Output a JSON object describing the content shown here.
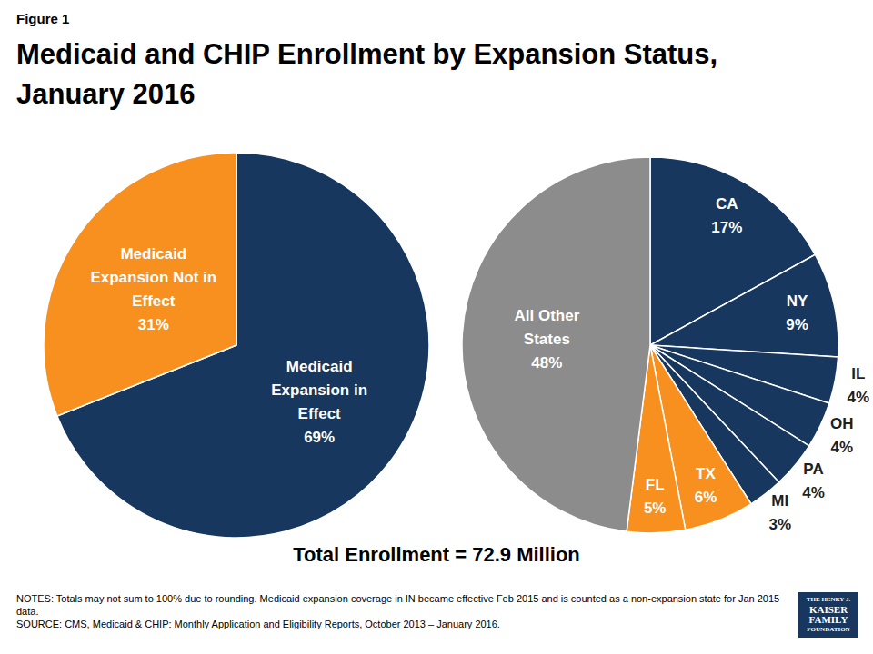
{
  "figure_label": "Figure 1",
  "title": "Medicaid and CHIP Enrollment by Expansion Status, January 2016",
  "chart_data": [
    {
      "type": "pie",
      "categories": [
        "Medicaid Expansion in Effect",
        "Medicaid Expansion Not in Effect"
      ],
      "values": [
        69,
        31
      ],
      "value_labels": [
        "69%",
        "31%"
      ],
      "colors": [
        "#17375e",
        "#f7901e"
      ],
      "data_labels": true
    },
    {
      "type": "pie",
      "categories": [
        "CA",
        "NY",
        "IL",
        "OH",
        "PA",
        "MI",
        "TX",
        "FL",
        "All Other States"
      ],
      "values": [
        17,
        9,
        4,
        4,
        4,
        3,
        6,
        5,
        48
      ],
      "value_labels": [
        "17%",
        "9%",
        "4%",
        "4%",
        "4%",
        "3%",
        "6%",
        "5%",
        "48%"
      ],
      "colors": [
        "#17375e",
        "#17375e",
        "#17375e",
        "#17375e",
        "#17375e",
        "#17375e",
        "#f7901e",
        "#f7901e",
        "#8c8c8c"
      ],
      "data_labels": true
    }
  ],
  "total": "Total Enrollment = 72.9 Million",
  "notes": "NOTES: Totals may not sum to 100% due to rounding. Medicaid expansion coverage in IN became effective Feb 2015 and is counted as a non-expansion state for Jan 2015 data.",
  "source": "SOURCE: CMS, Medicaid & CHIP: Monthly Application and Eligibility Reports, October 2013 – January 2016.",
  "logo": [
    "THE HENRY J.",
    "KAISER",
    "FAMILY",
    "FOUNDATION"
  ]
}
